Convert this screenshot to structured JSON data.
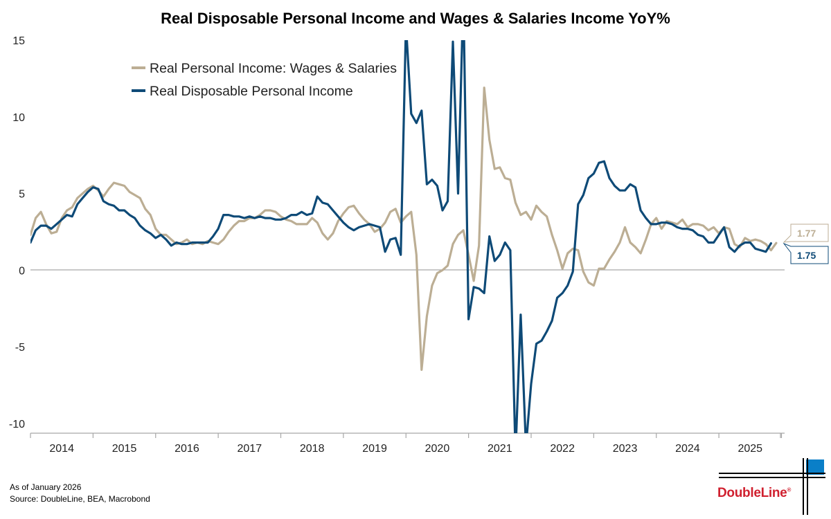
{
  "chart_data": {
    "type": "line",
    "title": "Real Disposable Personal Income and Wages & Salaries Income YoY%",
    "xlabel": "",
    "ylabel": "",
    "ylim": [
      -10,
      15
    ],
    "yticks": [
      15,
      10,
      5,
      0,
      -5,
      -10
    ],
    "ytick_labels": [
      "15",
      "10",
      "5",
      "0",
      "-5",
      "-10"
    ],
    "xlim": [
      2014.0,
      2026.05
    ],
    "x_year_labels": [
      "2014",
      "2015",
      "2016",
      "2017",
      "2018",
      "2019",
      "2020",
      "2021",
      "2022",
      "2023",
      "2024",
      "2025"
    ],
    "legend": [
      "Real Personal Income: Wages & Salaries",
      "Real Disposable Personal Income"
    ],
    "legend_position": "top-left",
    "end_labels": {
      "wages": "1.77",
      "disposable": "1.75"
    },
    "series": [
      {
        "name": "Real Personal Income: Wages & Salaries",
        "color": "#bcae94",
        "x_start": 2014.0,
        "x_step": 0.083333,
        "values": [
          2.3,
          3.4,
          3.8,
          3.0,
          2.4,
          2.5,
          3.4,
          3.9,
          4.1,
          4.7,
          5.0,
          5.3,
          5.5,
          5.2,
          4.8,
          5.3,
          5.7,
          5.6,
          5.5,
          5.1,
          4.9,
          4.7,
          4.0,
          3.6,
          2.7,
          2.3,
          2.3,
          2.0,
          1.7,
          1.8,
          2.0,
          1.7,
          1.8,
          1.7,
          1.9,
          1.8,
          1.7,
          2.0,
          2.5,
          2.9,
          3.2,
          3.2,
          3.4,
          3.4,
          3.6,
          3.9,
          3.9,
          3.8,
          3.5,
          3.3,
          3.2,
          3.0,
          3.0,
          3.0,
          3.4,
          3.1,
          2.4,
          2.0,
          2.4,
          3.2,
          3.7,
          4.1,
          4.2,
          3.7,
          3.3,
          3.0,
          2.5,
          2.7,
          3.1,
          3.8,
          4.0,
          3.1,
          3.5,
          3.8,
          1.0,
          -6.5,
          -3.0,
          -1.0,
          -0.2,
          0.0,
          0.3,
          1.7,
          2.3,
          2.6,
          1.0,
          -0.7,
          1.6,
          11.9,
          8.5,
          6.6,
          6.7,
          6.0,
          5.9,
          4.4,
          3.6,
          3.8,
          3.3,
          4.2,
          3.8,
          3.5,
          2.3,
          1.3,
          0.1,
          1.1,
          1.4,
          1.3,
          -0.1,
          -0.8,
          -1.0,
          0.1,
          0.1,
          0.7,
          1.2,
          1.8,
          2.8,
          1.8,
          1.5,
          1.1,
          2.0,
          3.0,
          3.4,
          2.7,
          3.2,
          3.1,
          3.0,
          3.3,
          2.8,
          3.0,
          3.0,
          2.9,
          2.6,
          2.8,
          2.4,
          2.8,
          2.7,
          1.7,
          1.5,
          2.1,
          1.9,
          2.0,
          1.9,
          1.7,
          1.3,
          1.77
        ]
      },
      {
        "name": "Real Disposable Personal Income",
        "color": "#0e4a77",
        "x_start": 2014.0,
        "x_step": 0.083333,
        "values": [
          1.8,
          2.6,
          2.9,
          2.9,
          2.7,
          3.0,
          3.3,
          3.6,
          3.5,
          4.3,
          4.7,
          5.1,
          5.4,
          5.3,
          4.5,
          4.3,
          4.2,
          3.9,
          3.9,
          3.6,
          3.4,
          2.9,
          2.6,
          2.4,
          2.1,
          2.3,
          2.0,
          1.6,
          1.8,
          1.7,
          1.7,
          1.8,
          1.8,
          1.8,
          1.8,
          2.2,
          2.7,
          3.6,
          3.6,
          3.5,
          3.5,
          3.4,
          3.5,
          3.4,
          3.5,
          3.4,
          3.4,
          3.3,
          3.3,
          3.4,
          3.6,
          3.6,
          3.8,
          3.6,
          3.7,
          4.8,
          4.4,
          4.3,
          3.9,
          3.5,
          3.1,
          2.8,
          2.6,
          2.8,
          2.9,
          3.0,
          2.9,
          2.8,
          1.2,
          2.0,
          2.1,
          1.0,
          16.0,
          10.2,
          9.6,
          10.4,
          5.6,
          5.9,
          5.5,
          3.9,
          4.5,
          14.9,
          5.0,
          18.0,
          -3.2,
          -1.1,
          -1.2,
          -1.5,
          2.2,
          0.6,
          1.0,
          1.8,
          1.3,
          -12.0,
          -2.9,
          -11.5,
          -7.4,
          -4.8,
          -4.6,
          -4.0,
          -3.3,
          -1.8,
          -1.5,
          -1.0,
          -0.1,
          4.3,
          4.9,
          6.0,
          6.3,
          7.0,
          7.1,
          6.0,
          5.5,
          5.2,
          5.2,
          5.6,
          5.4,
          3.9,
          3.4,
          3.0,
          3.0,
          3.1,
          3.1,
          3.0,
          2.8,
          2.7,
          2.7,
          2.6,
          2.3,
          2.2,
          1.8,
          1.8,
          2.3,
          2.8,
          1.5,
          1.2,
          1.6,
          1.8,
          1.8,
          1.4,
          1.3,
          1.2,
          1.75
        ]
      }
    ]
  },
  "footer": {
    "as_of": "As of January 2026",
    "source": "Source: DoubleLine, BEA, Macrobond"
  },
  "logo": {
    "name": "DoubleLine",
    "mark": "®"
  }
}
